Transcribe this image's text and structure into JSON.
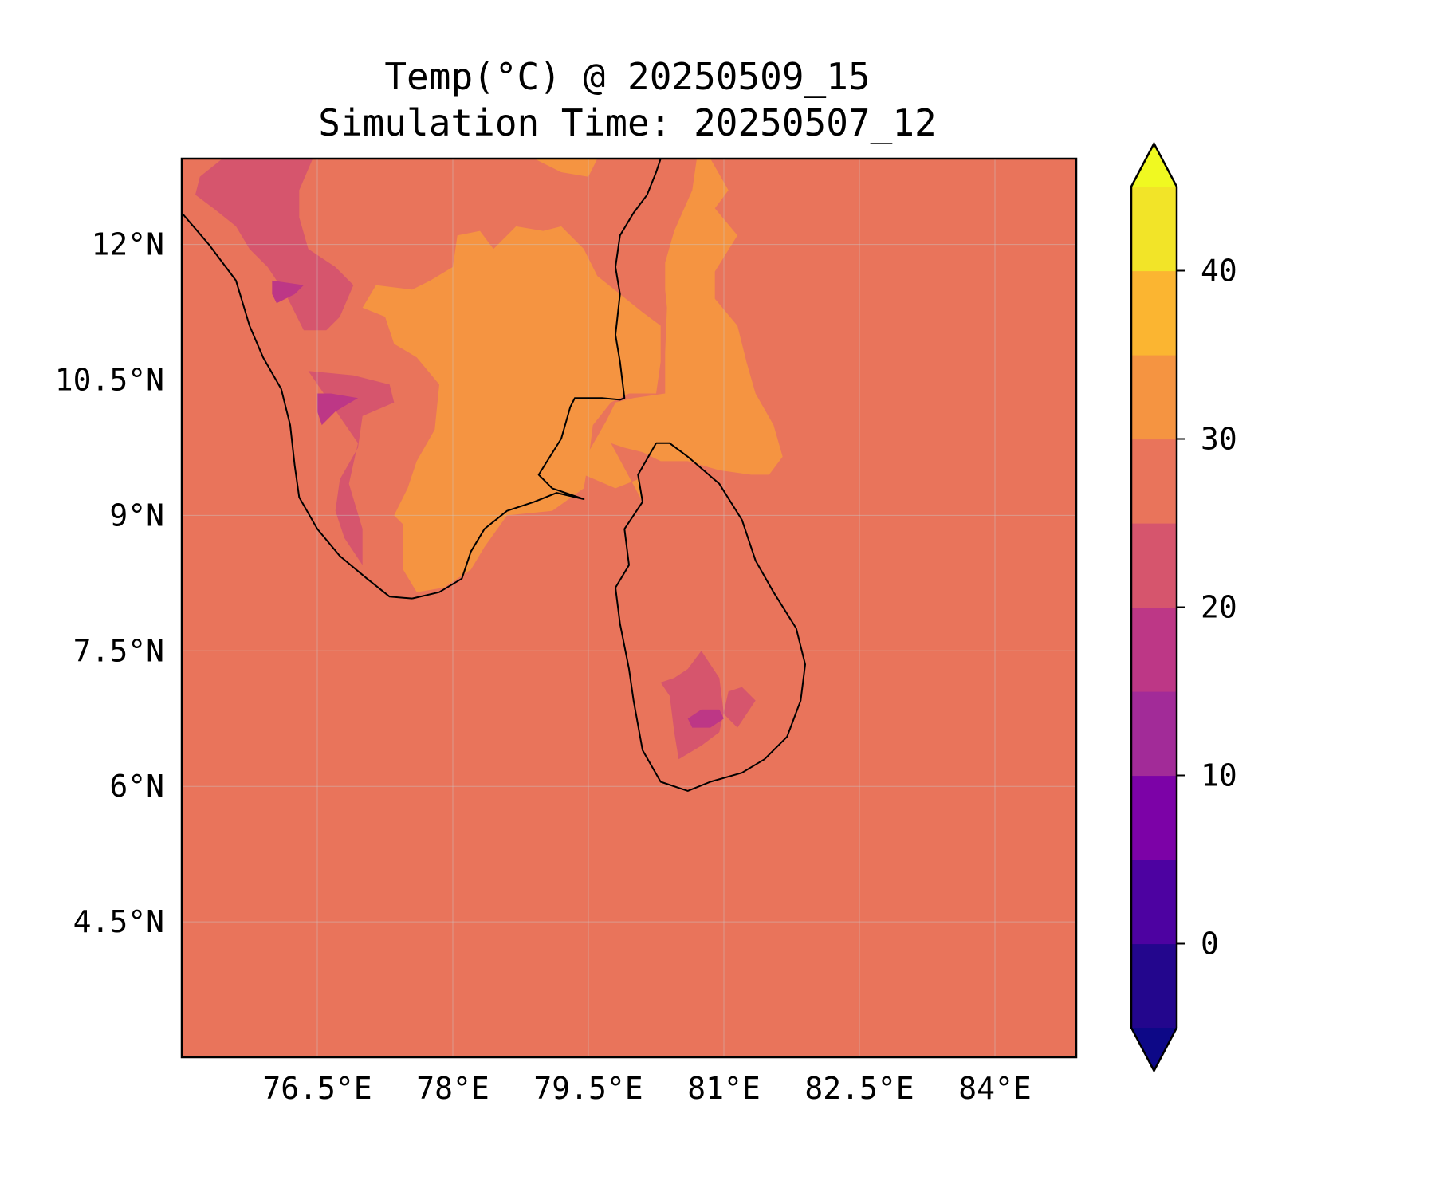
{
  "title": {
    "line1": "Temp(°C) @ 20250509_15",
    "line2": "Simulation Time: 20250507_12"
  },
  "map": {
    "lon_range": [
      75.0,
      84.9
    ],
    "lat_range": [
      3.0,
      12.95
    ],
    "background_value_c": 28,
    "lon_ticks": [
      {
        "value": 76.5,
        "label": "76.5°E"
      },
      {
        "value": 78.0,
        "label": "78°E"
      },
      {
        "value": 79.5,
        "label": "79.5°E"
      },
      {
        "value": 81.0,
        "label": "81°E"
      },
      {
        "value": 82.5,
        "label": "82.5°E"
      },
      {
        "value": 84.0,
        "label": "84°E"
      }
    ],
    "lat_ticks": [
      {
        "value": 12.0,
        "label": "12°N"
      },
      {
        "value": 10.5,
        "label": "10.5°N"
      },
      {
        "value": 9.0,
        "label": "9°N"
      },
      {
        "value": 7.5,
        "label": "7.5°N"
      },
      {
        "value": 6.0,
        "label": "6°N"
      },
      {
        "value": 4.5,
        "label": "4.5°N"
      }
    ],
    "regions": [
      {
        "name": "warm-33c",
        "color": "#f59441",
        "points": [
          [
            80.7,
            12.95
          ],
          [
            80.65,
            12.6
          ],
          [
            80.45,
            12.15
          ],
          [
            80.35,
            11.8
          ],
          [
            80.35,
            11.5
          ],
          [
            80.37,
            11.3
          ],
          [
            80.35,
            10.8
          ],
          [
            80.35,
            10.35
          ],
          [
            80.0,
            10.3
          ],
          [
            79.8,
            10.25
          ],
          [
            79.7,
            10.05
          ],
          [
            79.5,
            9.7
          ],
          [
            79.45,
            9.45
          ],
          [
            79.8,
            9.3
          ],
          [
            80.05,
            9.4
          ],
          [
            80.1,
            9.15
          ],
          [
            79.75,
            9.8
          ],
          [
            79.9,
            9.75
          ],
          [
            80.1,
            9.7
          ],
          [
            80.3,
            9.6
          ],
          [
            80.6,
            9.6
          ],
          [
            80.95,
            9.5
          ],
          [
            81.3,
            9.45
          ],
          [
            81.5,
            9.45
          ],
          [
            81.65,
            9.65
          ],
          [
            81.55,
            10.0
          ],
          [
            81.35,
            10.35
          ],
          [
            81.25,
            10.7
          ],
          [
            81.15,
            11.1
          ],
          [
            80.9,
            11.4
          ],
          [
            80.9,
            11.7
          ],
          [
            81.15,
            12.1
          ],
          [
            80.9,
            12.4
          ],
          [
            81.05,
            12.6
          ],
          [
            80.85,
            12.95
          ]
        ]
      },
      {
        "name": "warm-33c",
        "color": "#f59441",
        "points": [
          [
            77.55,
            11.5
          ],
          [
            77.75,
            11.6
          ],
          [
            78.0,
            11.75
          ],
          [
            78.05,
            12.1
          ],
          [
            78.3,
            12.15
          ],
          [
            78.45,
            11.95
          ],
          [
            78.55,
            12.05
          ],
          [
            78.7,
            12.2
          ],
          [
            79.0,
            12.15
          ],
          [
            79.2,
            12.2
          ],
          [
            79.45,
            11.95
          ],
          [
            79.6,
            11.65
          ],
          [
            79.85,
            11.45
          ],
          [
            80.1,
            11.25
          ],
          [
            80.3,
            11.1
          ],
          [
            80.3,
            10.7
          ],
          [
            80.25,
            10.35
          ],
          [
            79.95,
            10.35
          ],
          [
            79.75,
            10.25
          ],
          [
            79.55,
            10.0
          ],
          [
            79.5,
            9.6
          ],
          [
            79.45,
            9.3
          ],
          [
            79.1,
            9.05
          ],
          [
            78.6,
            9.0
          ],
          [
            78.35,
            8.65
          ],
          [
            78.2,
            8.4
          ],
          [
            77.9,
            8.2
          ],
          [
            77.6,
            8.15
          ],
          [
            77.45,
            8.4
          ],
          [
            77.45,
            8.9
          ],
          [
            77.35,
            9.0
          ],
          [
            77.5,
            9.3
          ],
          [
            77.6,
            9.6
          ],
          [
            77.8,
            9.95
          ],
          [
            77.85,
            10.45
          ],
          [
            77.6,
            10.75
          ],
          [
            77.35,
            10.9
          ],
          [
            77.25,
            11.2
          ],
          [
            77.0,
            11.3
          ],
          [
            77.15,
            11.55
          ]
        ]
      },
      {
        "name": "warm-33c",
        "color": "#f59441",
        "points": [
          [
            78.9,
            12.95
          ],
          [
            79.6,
            12.95
          ],
          [
            79.5,
            12.75
          ],
          [
            79.2,
            12.8
          ]
        ]
      },
      {
        "name": "mild-23c",
        "color": "#d6556d",
        "points": [
          [
            75.45,
            12.95
          ],
          [
            76.45,
            12.95
          ],
          [
            76.3,
            12.6
          ],
          [
            76.3,
            12.3
          ],
          [
            76.4,
            11.95
          ],
          [
            76.7,
            11.75
          ],
          [
            76.9,
            11.55
          ],
          [
            76.75,
            11.2
          ],
          [
            76.6,
            11.05
          ],
          [
            76.35,
            11.05
          ],
          [
            76.15,
            11.45
          ],
          [
            75.95,
            11.75
          ],
          [
            75.75,
            11.95
          ],
          [
            75.6,
            12.2
          ],
          [
            75.35,
            12.4
          ],
          [
            75.15,
            12.55
          ],
          [
            75.2,
            12.75
          ]
        ]
      },
      {
        "name": "mild-23c",
        "color": "#d6556d",
        "points": [
          [
            76.4,
            10.6
          ],
          [
            76.9,
            10.55
          ],
          [
            77.3,
            10.45
          ],
          [
            77.35,
            10.25
          ],
          [
            77.0,
            10.1
          ],
          [
            76.95,
            9.75
          ],
          [
            76.75,
            9.4
          ],
          [
            76.7,
            9.05
          ],
          [
            76.8,
            8.75
          ],
          [
            77.0,
            8.45
          ],
          [
            77.0,
            8.85
          ],
          [
            76.85,
            9.35
          ],
          [
            76.95,
            9.8
          ]
        ]
      },
      {
        "name": "mild-23c",
        "color": "#d6556d",
        "points": [
          [
            80.6,
            7.3
          ],
          [
            80.75,
            7.5
          ],
          [
            80.95,
            7.2
          ],
          [
            81.0,
            6.8
          ],
          [
            81.15,
            6.65
          ],
          [
            81.35,
            6.95
          ],
          [
            81.2,
            7.1
          ],
          [
            81.05,
            7.05
          ],
          [
            80.95,
            6.6
          ],
          [
            80.75,
            6.45
          ],
          [
            80.5,
            6.3
          ],
          [
            80.45,
            6.6
          ],
          [
            80.4,
            7.0
          ],
          [
            80.3,
            7.15
          ],
          [
            80.45,
            7.2
          ]
        ]
      },
      {
        "name": "cool-18c",
        "color": "#bd3786",
        "points": [
          [
            76.0,
            11.6
          ],
          [
            76.35,
            11.55
          ],
          [
            76.25,
            11.45
          ],
          [
            76.05,
            11.35
          ],
          [
            76.0,
            11.45
          ]
        ]
      },
      {
        "name": "cool-18c",
        "color": "#bd3786",
        "points": [
          [
            76.5,
            10.35
          ],
          [
            76.65,
            10.35
          ],
          [
            76.95,
            10.3
          ],
          [
            76.7,
            10.15
          ],
          [
            76.55,
            10.0
          ],
          [
            76.5,
            10.15
          ]
        ]
      },
      {
        "name": "cool-18c",
        "color": "#bd3786",
        "points": [
          [
            80.6,
            6.75
          ],
          [
            80.75,
            6.85
          ],
          [
            80.95,
            6.85
          ],
          [
            81.0,
            6.75
          ],
          [
            80.85,
            6.65
          ],
          [
            80.65,
            6.65
          ]
        ]
      }
    ],
    "coastlines": [
      {
        "name": "india-west-coast",
        "points": [
          [
            75.0,
            12.35
          ],
          [
            75.3,
            12.0
          ],
          [
            75.6,
            11.6
          ],
          [
            75.75,
            11.1
          ],
          [
            75.9,
            10.75
          ],
          [
            76.1,
            10.4
          ],
          [
            76.2,
            10.0
          ],
          [
            76.25,
            9.55
          ],
          [
            76.3,
            9.2
          ],
          [
            76.5,
            8.85
          ],
          [
            76.75,
            8.55
          ],
          [
            77.05,
            8.3
          ],
          [
            77.3,
            8.1
          ],
          [
            77.55,
            8.08
          ]
        ]
      },
      {
        "name": "india-south-east-coast",
        "points": [
          [
            77.55,
            8.08
          ],
          [
            77.85,
            8.15
          ],
          [
            78.1,
            8.3
          ],
          [
            78.2,
            8.6
          ],
          [
            78.35,
            8.85
          ],
          [
            78.6,
            9.05
          ],
          [
            78.9,
            9.15
          ],
          [
            79.15,
            9.25
          ],
          [
            79.45,
            9.18
          ],
          [
            79.1,
            9.3
          ],
          [
            78.95,
            9.45
          ],
          [
            79.2,
            9.85
          ],
          [
            79.3,
            10.2
          ],
          [
            79.35,
            10.3
          ],
          [
            79.65,
            10.3
          ],
          [
            79.85,
            10.28
          ],
          [
            79.9,
            10.3
          ],
          [
            79.85,
            10.7
          ],
          [
            79.8,
            11.0
          ],
          [
            79.85,
            11.45
          ],
          [
            79.8,
            11.75
          ],
          [
            79.85,
            12.1
          ],
          [
            80.0,
            12.35
          ],
          [
            80.15,
            12.55
          ],
          [
            80.25,
            12.8
          ],
          [
            80.3,
            12.95
          ]
        ]
      },
      {
        "name": "sri-lanka-coast",
        "points": [
          [
            80.25,
            9.8
          ],
          [
            80.4,
            9.8
          ],
          [
            80.6,
            9.65
          ],
          [
            80.95,
            9.35
          ],
          [
            81.2,
            8.95
          ],
          [
            81.35,
            8.5
          ],
          [
            81.55,
            8.15
          ],
          [
            81.8,
            7.75
          ],
          [
            81.9,
            7.35
          ],
          [
            81.85,
            6.95
          ],
          [
            81.7,
            6.55
          ],
          [
            81.45,
            6.3
          ],
          [
            81.2,
            6.15
          ],
          [
            80.85,
            6.05
          ],
          [
            80.6,
            5.95
          ],
          [
            80.3,
            6.05
          ],
          [
            80.1,
            6.4
          ],
          [
            80.0,
            6.95
          ],
          [
            79.95,
            7.3
          ],
          [
            79.85,
            7.8
          ],
          [
            79.8,
            8.2
          ],
          [
            79.95,
            8.45
          ],
          [
            79.9,
            8.85
          ],
          [
            80.1,
            9.15
          ],
          [
            80.05,
            9.45
          ],
          [
            80.25,
            9.8
          ]
        ]
      }
    ]
  },
  "colorbar": {
    "levels": [
      -5,
      0,
      5,
      10,
      15,
      20,
      25,
      30,
      35,
      40,
      45
    ],
    "colors": [
      "#23068d",
      "#4d02a1",
      "#7c02a7",
      "#a22b98",
      "#bd3786",
      "#d6556d",
      "#e9745b",
      "#f59441",
      "#fbb531",
      "#f2e428"
    ],
    "under_color": "#0d0887",
    "over_color": "#f0f921",
    "ticks": [
      {
        "value": 0,
        "label": "0"
      },
      {
        "value": 10,
        "label": "10"
      },
      {
        "value": 20,
        "label": "20"
      },
      {
        "value": 30,
        "label": "30"
      },
      {
        "value": 40,
        "label": "40"
      }
    ]
  }
}
